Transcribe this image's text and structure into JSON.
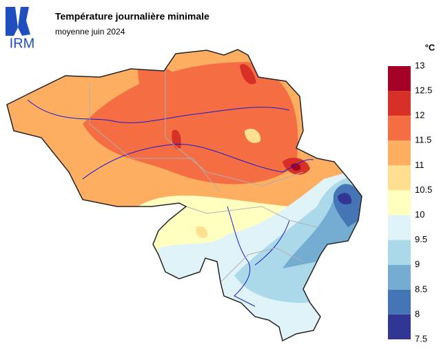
{
  "header": {
    "logo": "IRM",
    "title": "Température journalière minimale",
    "subtitle": "moyenne juin 2024"
  },
  "legend": {
    "unit": "°C",
    "ticks": [
      13,
      12.5,
      12,
      11.5,
      11,
      10.5,
      10,
      9.5,
      9,
      8.5,
      8,
      7.5
    ],
    "colors": [
      "#a50026",
      "#d73027",
      "#f46d43",
      "#fdae61",
      "#fee090",
      "#ffffbf",
      "#e0f3f8",
      "#abd9e9",
      "#74add1",
      "#4575b4",
      "#313695"
    ]
  }
}
